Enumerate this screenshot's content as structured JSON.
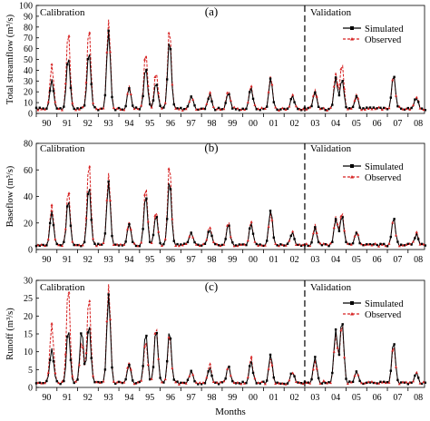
{
  "chart_data": [
    {
      "type": "line",
      "panel_label": "(a)",
      "ylabel": "Total streamflow (m³/s)",
      "xlabel": "",
      "ylim": [
        0,
        100
      ],
      "yticks": [
        0,
        10,
        20,
        30,
        40,
        50,
        60,
        70,
        80,
        90,
        100
      ],
      "x_tick_labels": [
        "90",
        "91",
        "92",
        "93",
        "94",
        "95",
        "96",
        "97",
        "98",
        "99",
        "00",
        "01",
        "02",
        "03",
        "04",
        "05",
        "06",
        "07",
        "08"
      ],
      "x_range_years": [
        1990,
        2008.8
      ],
      "split_year": 2003,
      "left_annotation": "Calibration",
      "right_annotation": "Validation",
      "legend": {
        "position": "top-right",
        "entries": [
          "Simulated",
          "Observed"
        ]
      },
      "series": [
        {
          "name": "Simulated",
          "color": "#000000",
          "style": "solid",
          "marker": "square"
        },
        {
          "name": "Observed",
          "color": "#d62020",
          "style": "dashed",
          "marker": "triangle"
        }
      ],
      "peaks": [
        {
          "x": 1990.75,
          "sim": 28,
          "obs": 42
        },
        {
          "x": 1991.55,
          "sim": 48,
          "obs": 72
        },
        {
          "x": 1992.55,
          "sim": 55,
          "obs": 77
        },
        {
          "x": 1993.5,
          "sim": 72,
          "obs": 82
        },
        {
          "x": 1994.5,
          "sim": 20,
          "obs": 22
        },
        {
          "x": 1995.3,
          "sim": 40,
          "obs": 55
        },
        {
          "x": 1995.8,
          "sim": 25,
          "obs": 35
        },
        {
          "x": 1996.45,
          "sim": 65,
          "obs": 75
        },
        {
          "x": 1997.5,
          "sim": 12,
          "obs": 12
        },
        {
          "x": 1998.4,
          "sim": 14,
          "obs": 16
        },
        {
          "x": 1999.3,
          "sim": 15,
          "obs": 18
        },
        {
          "x": 2000.4,
          "sim": 20,
          "obs": 22
        },
        {
          "x": 2001.35,
          "sim": 28,
          "obs": 30
        },
        {
          "x": 2002.4,
          "sim": 12,
          "obs": 13
        },
        {
          "x": 2003.5,
          "sim": 15,
          "obs": 18
        },
        {
          "x": 2004.5,
          "sim": 30,
          "obs": 35
        },
        {
          "x": 2004.8,
          "sim": 28,
          "obs": 43
        },
        {
          "x": 2005.5,
          "sim": 12,
          "obs": 14
        },
        {
          "x": 2007.3,
          "sim": 33,
          "obs": 32
        },
        {
          "x": 2008.4,
          "sim": 10,
          "obs": 11
        }
      ]
    },
    {
      "type": "line",
      "panel_label": "(b)",
      "ylabel": "Baseflow (m³/s)",
      "xlabel": "",
      "ylim": [
        0,
        80
      ],
      "yticks": [
        0,
        20,
        40,
        60,
        80
      ],
      "x_tick_labels": [
        "90",
        "91",
        "92",
        "93",
        "94",
        "95",
        "96",
        "97",
        "98",
        "99",
        "00",
        "01",
        "02",
        "03",
        "04",
        "05",
        "06",
        "07",
        "08"
      ],
      "x_range_years": [
        1990,
        2008.8
      ],
      "split_year": 2003,
      "left_annotation": "Calibration",
      "right_annotation": "Validation",
      "legend": {
        "position": "top-right",
        "entries": [
          "Simulated",
          "Observed"
        ]
      },
      "series": [
        {
          "name": "Simulated",
          "color": "#000000",
          "style": "solid",
          "marker": "square"
        },
        {
          "name": "Observed",
          "color": "#d62020",
          "style": "dashed",
          "marker": "triangle"
        }
      ],
      "peaks": [
        {
          "x": 1990.75,
          "sim": 25,
          "obs": 30
        },
        {
          "x": 1991.55,
          "sim": 35,
          "obs": 42
        },
        {
          "x": 1992.55,
          "sim": 46,
          "obs": 64
        },
        {
          "x": 1993.5,
          "sim": 48,
          "obs": 54
        },
        {
          "x": 1994.5,
          "sim": 16,
          "obs": 18
        },
        {
          "x": 1995.3,
          "sim": 38,
          "obs": 45
        },
        {
          "x": 1995.8,
          "sim": 22,
          "obs": 25
        },
        {
          "x": 1996.45,
          "sim": 50,
          "obs": 62
        },
        {
          "x": 1997.5,
          "sim": 10,
          "obs": 10
        },
        {
          "x": 1998.4,
          "sim": 12,
          "obs": 14
        },
        {
          "x": 1999.3,
          "sim": 15,
          "obs": 17
        },
        {
          "x": 2000.4,
          "sim": 16,
          "obs": 18
        },
        {
          "x": 2001.35,
          "sim": 27,
          "obs": 25
        },
        {
          "x": 2002.4,
          "sim": 10,
          "obs": 11
        },
        {
          "x": 2003.5,
          "sim": 13,
          "obs": 15
        },
        {
          "x": 2004.5,
          "sim": 20,
          "obs": 22
        },
        {
          "x": 2004.8,
          "sim": 22,
          "obs": 25
        },
        {
          "x": 2005.5,
          "sim": 10,
          "obs": 11
        },
        {
          "x": 2007.3,
          "sim": 21,
          "obs": 20
        },
        {
          "x": 2008.4,
          "sim": 8,
          "obs": 9
        }
      ]
    },
    {
      "type": "line",
      "panel_label": "(c)",
      "ylabel": "Runoff (m³/s)",
      "xlabel": "Months",
      "ylim": [
        0,
        30
      ],
      "yticks": [
        0,
        5,
        10,
        15,
        20,
        25,
        30
      ],
      "x_tick_labels": [
        "90",
        "91",
        "92",
        "93",
        "94",
        "95",
        "96",
        "97",
        "98",
        "99",
        "00",
        "01",
        "02",
        "03",
        "04",
        "05",
        "06",
        "07",
        "08"
      ],
      "x_range_years": [
        1990,
        2008.8
      ],
      "split_year": 2003,
      "left_annotation": "Calibration",
      "right_annotation": "Validation",
      "legend": {
        "position": "top-right",
        "entries": [
          "Simulated",
          "Observed"
        ]
      },
      "series": [
        {
          "name": "Simulated",
          "color": "#000000",
          "style": "solid",
          "marker": "square"
        },
        {
          "name": "Observed",
          "color": "#d62020",
          "style": "dashed",
          "marker": "triangle"
        }
      ],
      "peaks": [
        {
          "x": 1990.75,
          "sim": 10,
          "obs": 17
        },
        {
          "x": 1991.55,
          "sim": 15,
          "obs": 27
        },
        {
          "x": 1992.2,
          "sim": 15,
          "obs": 12
        },
        {
          "x": 1992.55,
          "sim": 17,
          "obs": 25
        },
        {
          "x": 1993.5,
          "sim": 25,
          "obs": 28
        },
        {
          "x": 1994.5,
          "sim": 5,
          "obs": 6
        },
        {
          "x": 1995.3,
          "sim": 14,
          "obs": 12
        },
        {
          "x": 1995.8,
          "sim": 15,
          "obs": 16
        },
        {
          "x": 1996.45,
          "sim": 15,
          "obs": 14
        },
        {
          "x": 1997.5,
          "sim": 3,
          "obs": 3
        },
        {
          "x": 1998.4,
          "sim": 4,
          "obs": 5
        },
        {
          "x": 1999.3,
          "sim": 5,
          "obs": 5
        },
        {
          "x": 2000.4,
          "sim": 6,
          "obs": 7
        },
        {
          "x": 2001.35,
          "sim": 8,
          "obs": 7
        },
        {
          "x": 2002.4,
          "sim": 3,
          "obs": 3
        },
        {
          "x": 2003.5,
          "sim": 7,
          "obs": 6
        },
        {
          "x": 2004.5,
          "sim": 15,
          "obs": 14
        },
        {
          "x": 2004.8,
          "sim": 18,
          "obs": 17
        },
        {
          "x": 2005.5,
          "sim": 3,
          "obs": 3
        },
        {
          "x": 2007.3,
          "sim": 12,
          "obs": 11
        },
        {
          "x": 2008.4,
          "sim": 3,
          "obs": 3
        }
      ]
    }
  ]
}
